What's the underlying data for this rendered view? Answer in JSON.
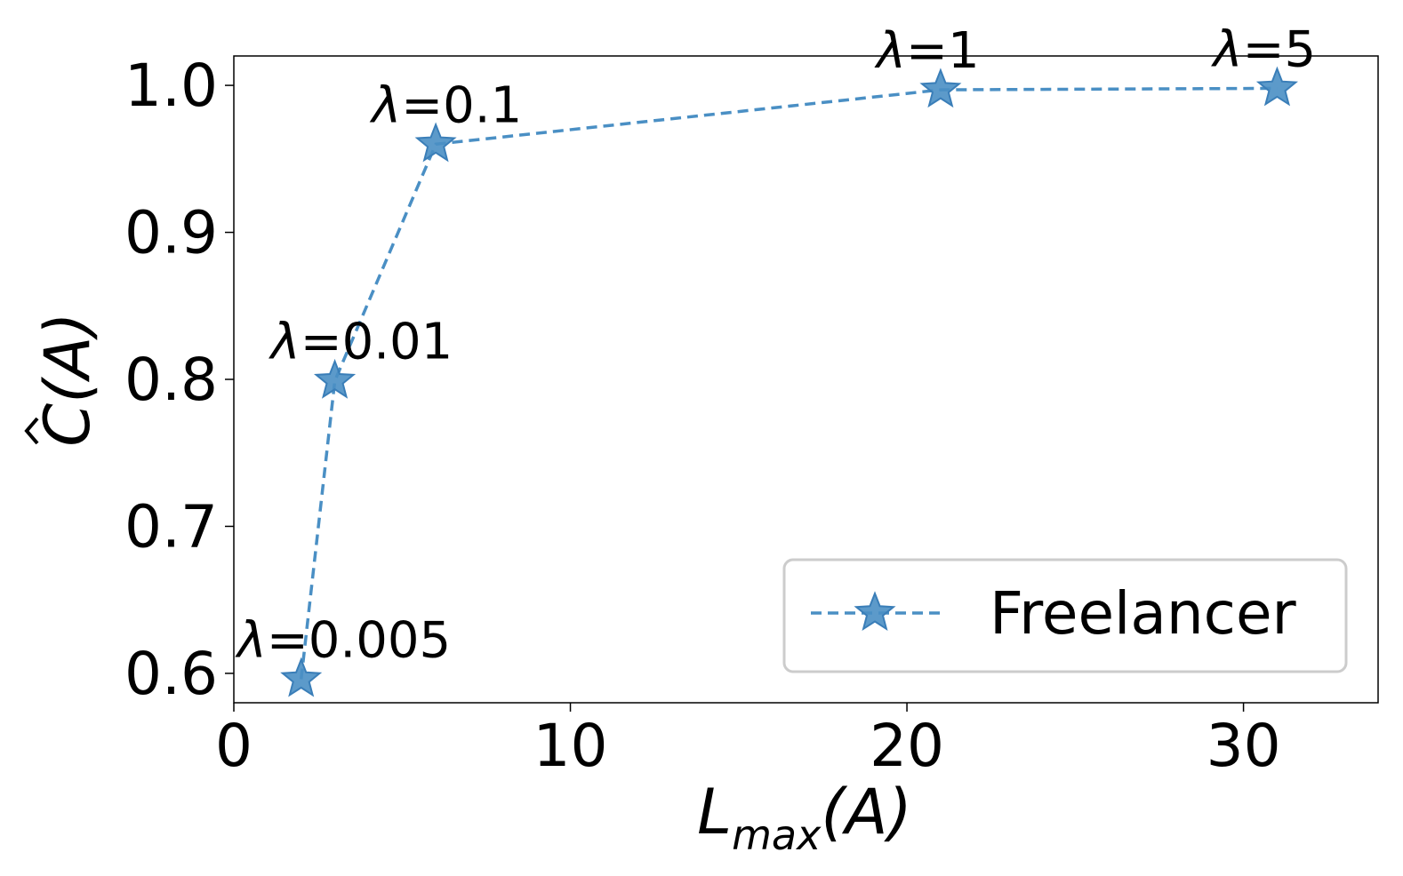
{
  "chart_data": {
    "type": "line",
    "xlabel": "Lmax(A)",
    "ylabel": "C(A)",
    "xlim": [
      0,
      34
    ],
    "ylim": [
      0.58,
      1.02
    ],
    "xticks": [
      0,
      10,
      20,
      30
    ],
    "yticks": [
      0.6,
      0.7,
      0.8,
      0.9,
      1.0
    ],
    "ytick_labels": [
      "0.6",
      "0.7",
      "0.8",
      "0.9",
      "1.0"
    ],
    "xtick_labels": [
      "0",
      "10",
      "20",
      "30"
    ],
    "grid": false,
    "legend_position": "lower-right",
    "series": [
      {
        "name": "Freelancer",
        "color": "#4a8fc4",
        "marker": "star",
        "linestyle": "dashed",
        "x": [
          2,
          3,
          6,
          21,
          31
        ],
        "y": [
          0.596,
          0.799,
          0.96,
          0.997,
          0.998
        ],
        "point_labels": [
          "λ=0.005",
          "λ=0.01",
          "λ=0.1",
          "λ=1",
          "λ=5"
        ]
      }
    ]
  }
}
